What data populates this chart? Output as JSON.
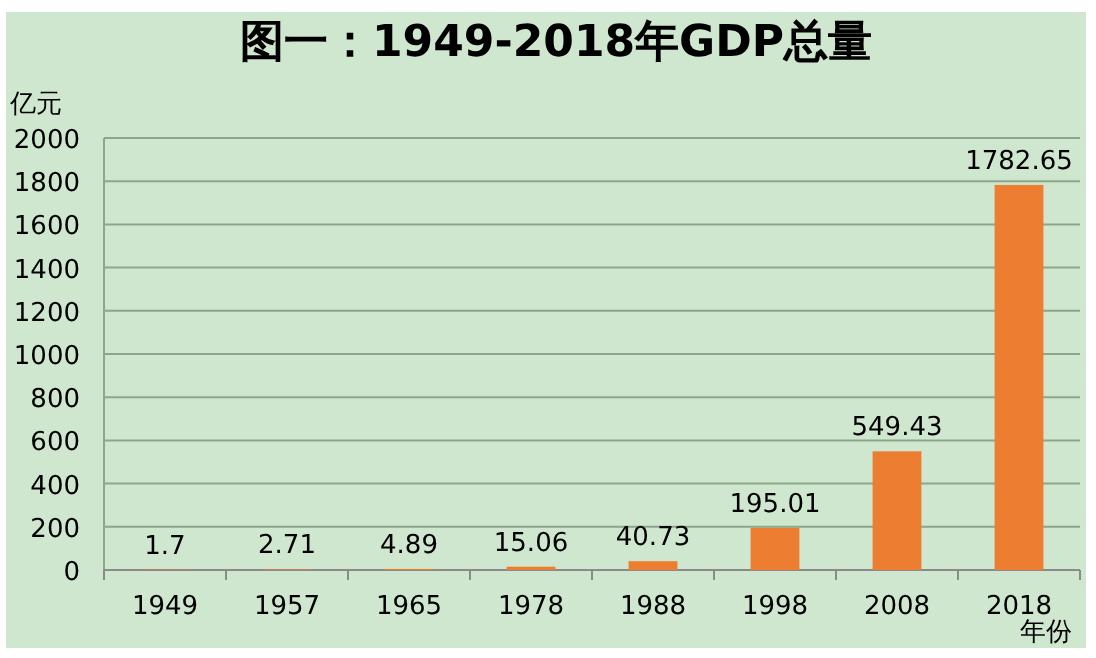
{
  "chart_data": {
    "type": "bar",
    "title": "图一：1949-2018年GDP总量",
    "ylabel": "亿元",
    "xlabel": "年份",
    "categories": [
      "1949",
      "1957",
      "1965",
      "1978",
      "1988",
      "1998",
      "2008",
      "2018"
    ],
    "values": [
      1.7,
      2.71,
      4.89,
      15.06,
      40.73,
      195.01,
      549.43,
      1782.65
    ],
    "color": "#ed7d31",
    "ylim": [
      0,
      2000
    ],
    "yticks": [
      0,
      200,
      400,
      600,
      800,
      1000,
      1200,
      1400,
      1600,
      1800,
      2000
    ],
    "grid": "y",
    "data_labels": true
  }
}
